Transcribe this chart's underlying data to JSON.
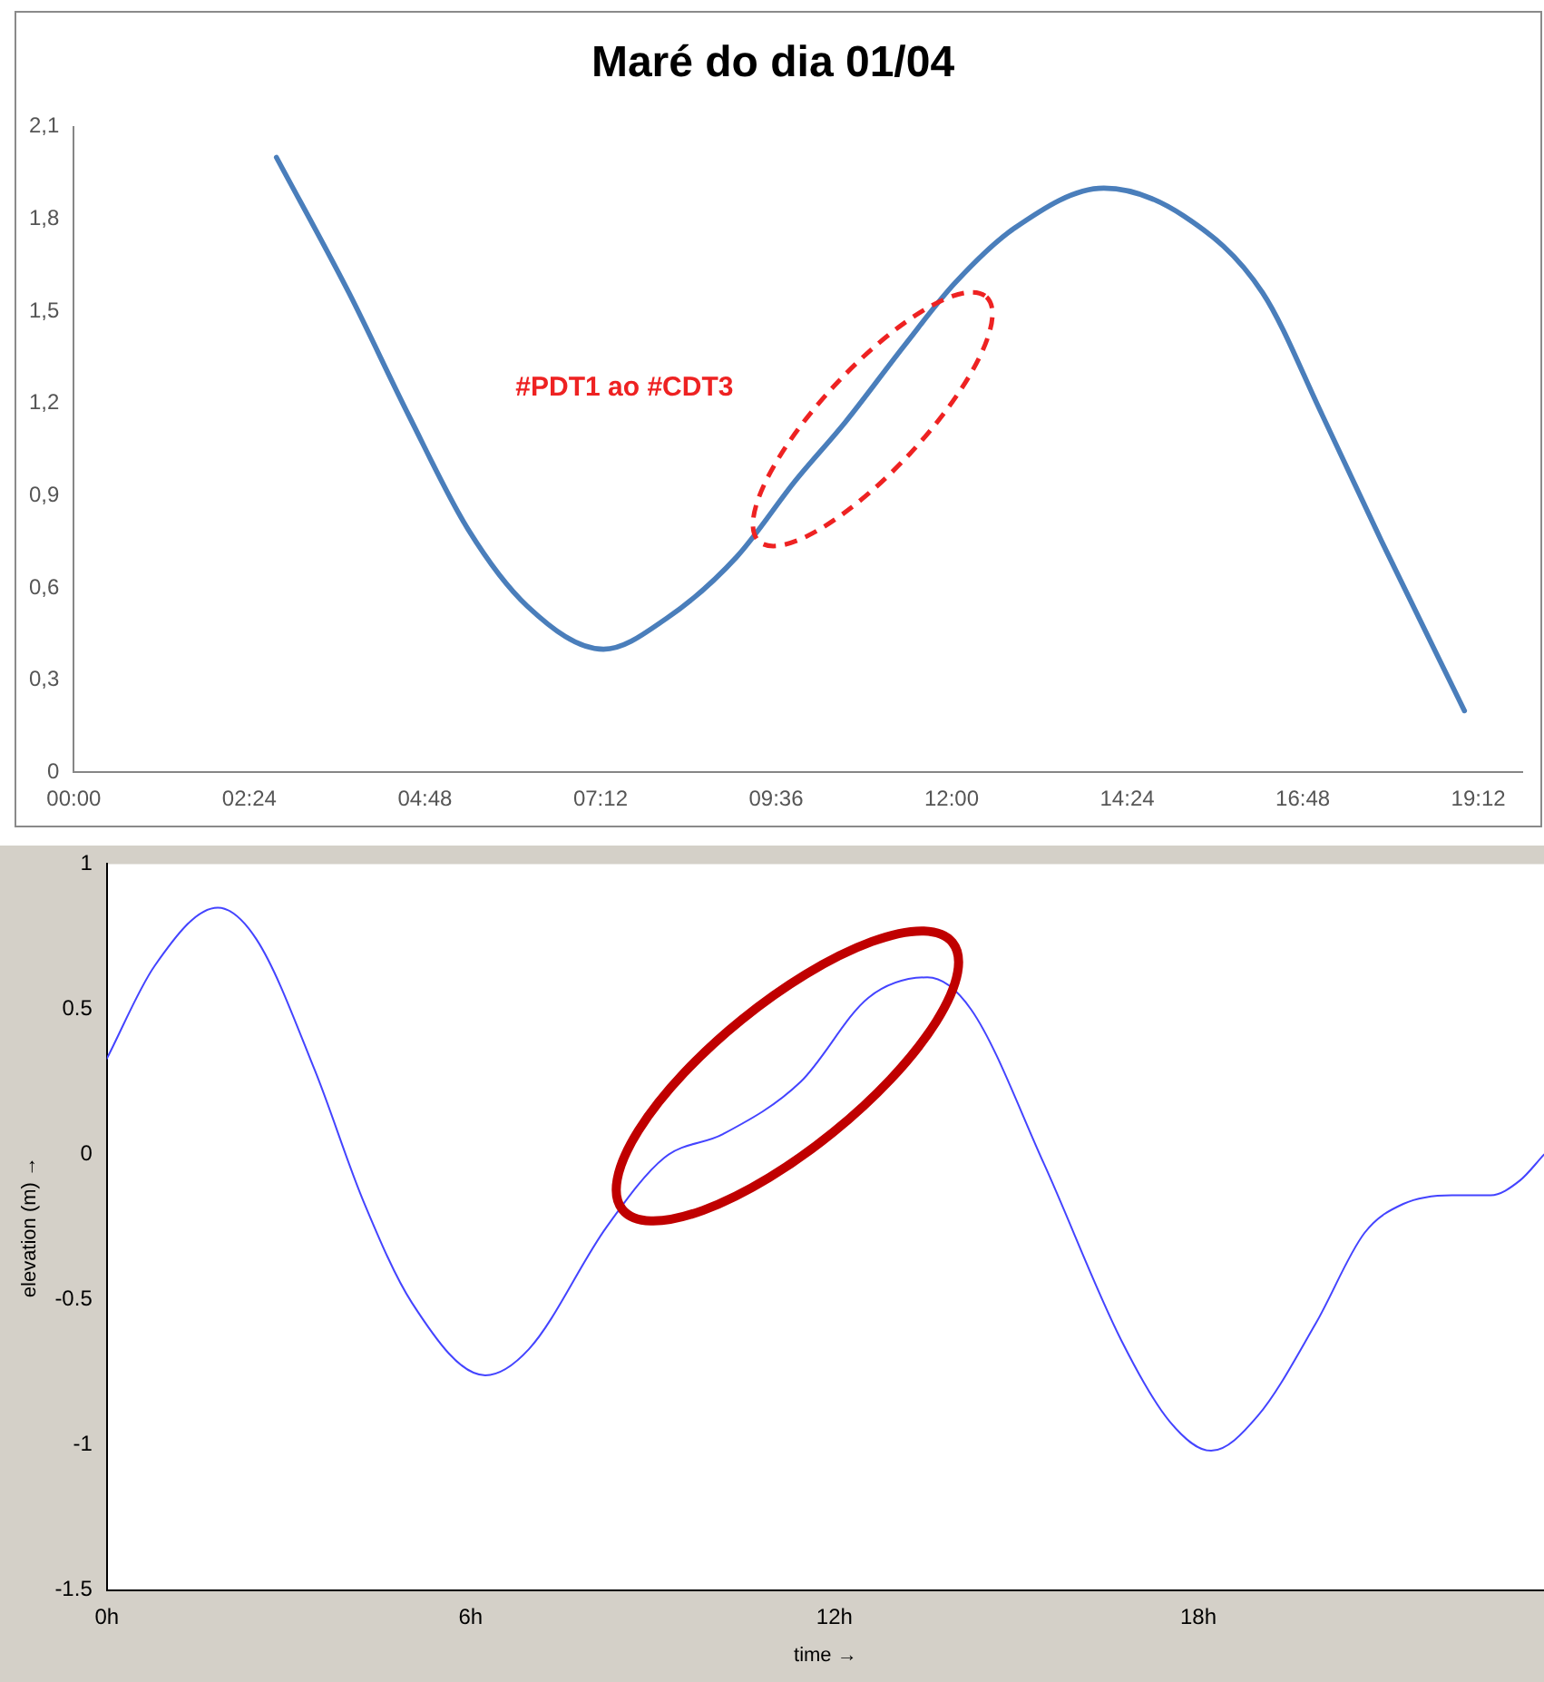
{
  "chart_data": [
    {
      "type": "line",
      "title": "Maré do dia 01/04",
      "annotations": [
        "#PDT1 ao #CDT3"
      ],
      "legend": false,
      "grid": false,
      "marker": "none",
      "xlim": [
        0,
        19.8
      ],
      "xticks": [
        {
          "value": 0,
          "label": "00:00"
        },
        {
          "value": 2.4,
          "label": "02:24"
        },
        {
          "value": 4.8,
          "label": "04:48"
        },
        {
          "value": 7.2,
          "label": "07:12"
        },
        {
          "value": 9.6,
          "label": "09:36"
        },
        {
          "value": 12,
          "label": "12:00"
        },
        {
          "value": 14.4,
          "label": "14:24"
        },
        {
          "value": 16.8,
          "label": "16:48"
        },
        {
          "value": 19.2,
          "label": "19:12"
        }
      ],
      "ylim": [
        0,
        2.1
      ],
      "yticks": [
        0,
        {
          "value": 0.3,
          "label": "0,3"
        },
        {
          "value": 0.6,
          "label": "0,6"
        },
        {
          "value": 0.9,
          "label": "0,9"
        },
        {
          "value": 1.2,
          "label": "1,2"
        },
        {
          "value": 1.5,
          "label": "1,5"
        },
        {
          "value": 1.8,
          "label": "1,8"
        },
        {
          "value": 2.1,
          "label": "2,1"
        }
      ],
      "x": [
        2.77,
        3.76,
        4.58,
        5.39,
        6.2,
        7.24,
        8.1,
        9.06,
        9.87,
        10.55,
        11.36,
        12.04,
        12.86,
        14.08,
        15.17,
        16.25,
        17.07,
        17.88,
        19.01
      ],
      "series": [
        {
          "color": "#4a7ebb",
          "values": [
            2.0,
            1.56,
            1.16,
            0.79,
            0.54,
            0.4,
            0.5,
            0.7,
            0.95,
            1.14,
            1.39,
            1.59,
            1.77,
            1.9,
            1.81,
            1.56,
            1.16,
            0.75,
            0.2
          ]
        }
      ]
    },
    {
      "type": "line",
      "xlabel": "time →",
      "ylabel": "elevation (m) →",
      "legend": false,
      "grid": false,
      "marker": "none",
      "xlim": [
        0,
        23.7
      ],
      "xticks": [
        {
          "value": 0,
          "label": "0h"
        },
        {
          "value": 6,
          "label": "6h"
        },
        {
          "value": 12,
          "label": "12h"
        },
        {
          "value": 18,
          "label": "18h"
        }
      ],
      "ylim": [
        -1.5,
        1
      ],
      "yticks": [
        -1.5,
        -1,
        -0.5,
        0,
        0.5,
        1
      ],
      "x": [
        0,
        0.79,
        1.83,
        2.47,
        3.43,
        4.23,
        5.03,
        6.24,
        6.96,
        8.24,
        9.2,
        10.16,
        11.44,
        12.56,
        13.53,
        14.25,
        15.45,
        16.73,
        17.53,
        18.21,
        18.98,
        19.94,
        20.74,
        21.38,
        22.18,
        22.82,
        23.3,
        23.7
      ],
      "series": [
        {
          "color": "#4444ff",
          "values": [
            0.33,
            0.65,
            0.85,
            0.74,
            0.29,
            -0.16,
            -0.51,
            -0.76,
            -0.67,
            -0.25,
            -0.01,
            0.07,
            0.25,
            0.54,
            0.61,
            0.5,
            -0.03,
            -0.64,
            -0.92,
            -1.02,
            -0.9,
            -0.58,
            -0.27,
            -0.17,
            -0.14,
            -0.14,
            -0.09,
            0.0
          ]
        }
      ]
    }
  ]
}
